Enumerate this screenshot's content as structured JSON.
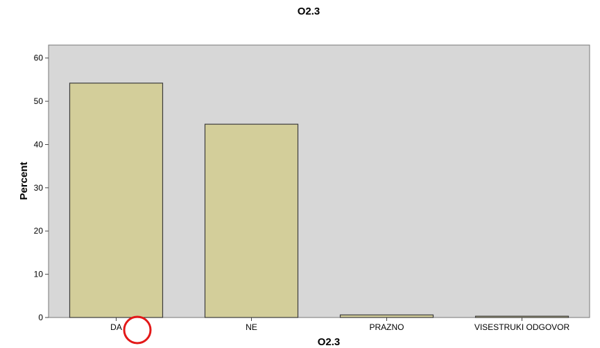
{
  "chart_data": {
    "type": "bar",
    "title": "O2.3",
    "xlabel": "O2.3",
    "ylabel": "Percent",
    "categories": [
      "DA",
      "NE",
      "PRAZNO",
      "VISESTRUKI ODGOVOR"
    ],
    "values": [
      54.2,
      44.7,
      0.6,
      0.3
    ],
    "ylim": [
      0,
      63
    ],
    "yticks": [
      "0",
      "10",
      "20",
      "30",
      "40",
      "50",
      "60"
    ],
    "grid": false,
    "legend": "none",
    "colors": {
      "plot_background": "#d7d7d7",
      "bar_fill": "#d3ce9a",
      "bar_stroke": "#3b3b3b",
      "highlight_circle": "#e31818"
    },
    "annotations": [
      {
        "type": "circle",
        "target_category": "DA"
      }
    ]
  }
}
